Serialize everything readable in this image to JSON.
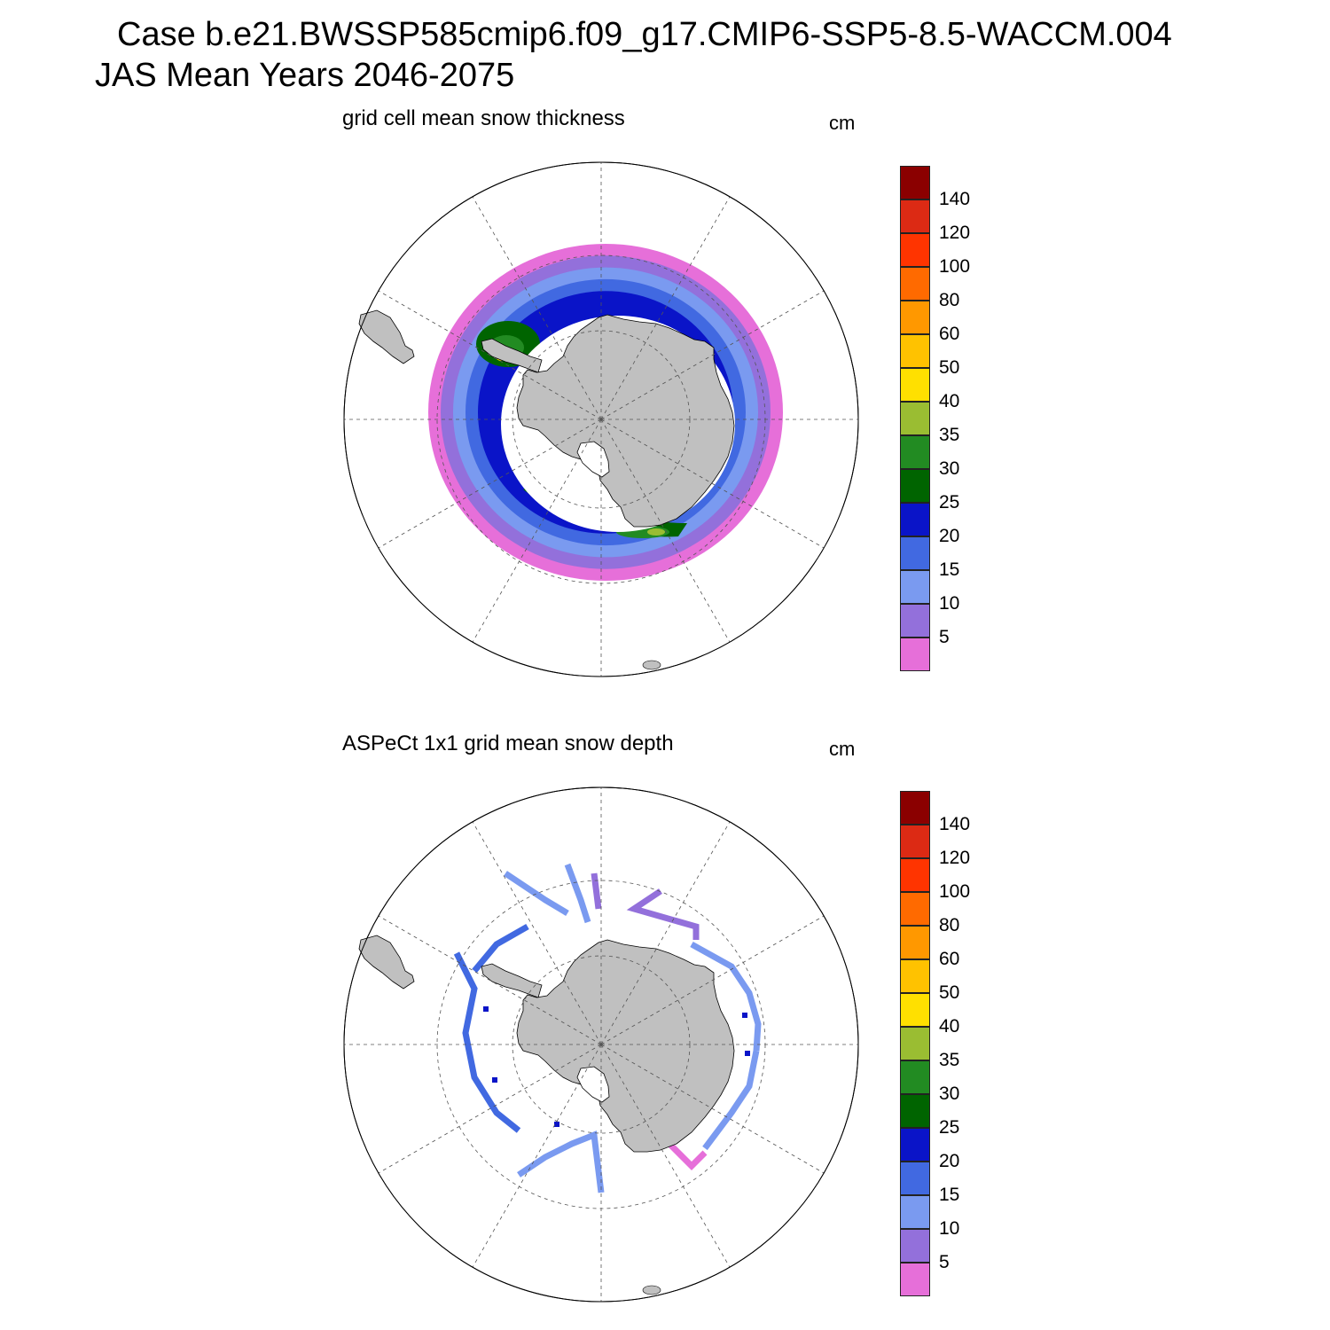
{
  "title": {
    "line1": "Case b.e21.BWSSP585cmip6.f09_g17.CMIP6-SSP5-8.5-WACCM.004",
    "line2": "JAS Mean   Years 2046-2075"
  },
  "panels": [
    {
      "id": "model",
      "title": "grid cell mean snow thickness",
      "units": "cm"
    },
    {
      "id": "obs",
      "title": "ASPeCt 1x1 grid mean snow depth",
      "units": "cm"
    }
  ],
  "colorbar": {
    "labels": [
      "5",
      "10",
      "15",
      "20",
      "25",
      "30",
      "35",
      "40",
      "50",
      "60",
      "80",
      "100",
      "120",
      "140"
    ],
    "colors": [
      "#e66fd9",
      "#9370db",
      "#7a9af0",
      "#4169e1",
      "#0a14c8",
      "#006400",
      "#228b22",
      "#9abd32",
      "#ffe000",
      "#ffc200",
      "#ff9800",
      "#ff6a00",
      "#ff3400",
      "#dc2a14",
      "#8b0000"
    ]
  },
  "map_style": {
    "land": "#c0c0c0",
    "coast": "#000000",
    "grid": "#555555",
    "projection": "south polar stereographic"
  }
}
